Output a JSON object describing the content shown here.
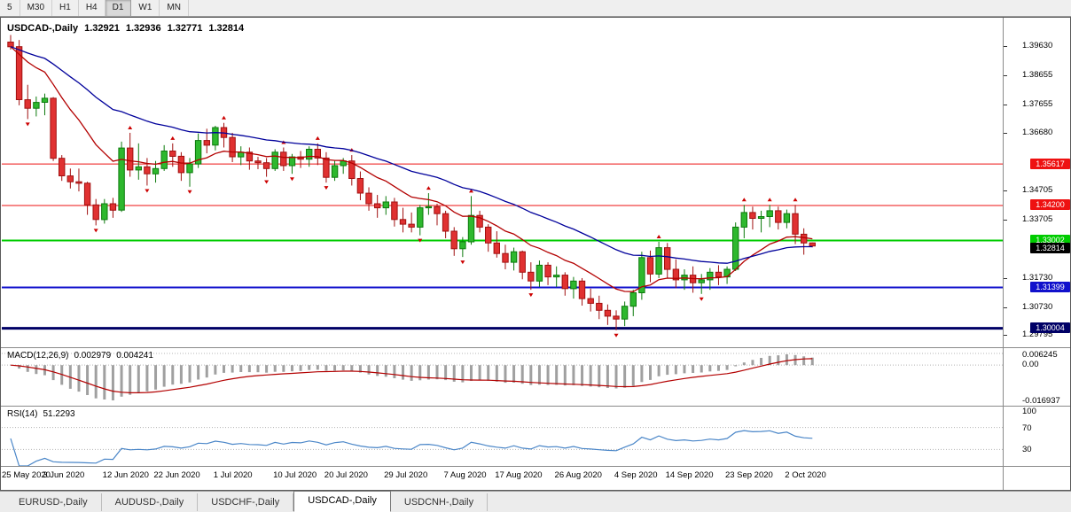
{
  "toolbar": {
    "periods": [
      {
        "label": "5",
        "active": false
      },
      {
        "label": "M30",
        "active": false
      },
      {
        "label": "H1",
        "active": false
      },
      {
        "label": "H4",
        "active": false
      },
      {
        "label": "D1",
        "active": true
      },
      {
        "label": "W1",
        "active": false
      },
      {
        "label": "MN",
        "active": false
      }
    ]
  },
  "chart": {
    "symbol_period": "USDCAD-,Daily",
    "ohlc": [
      "1.32921",
      "1.32936",
      "1.32771",
      "1.32814"
    ]
  },
  "chart_data": {
    "type": "candlestick",
    "symbol": "USDCAD",
    "timeframe": "Daily",
    "title": "USDCAD-,Daily 1.32921 1.32936 1.32771 1.32814",
    "price_range": [
      1.2945,
      1.4055
    ],
    "candle_up_color": "#2eb82e",
    "candle_down_color": "#e03131",
    "y_ticks": [
      {
        "v": 1.3963,
        "t": "1.39630"
      },
      {
        "v": 1.38655,
        "t": "1.38655"
      },
      {
        "v": 1.37655,
        "t": "1.37655"
      },
      {
        "v": 1.3668,
        "t": "1.36680"
      },
      {
        "v": 1.34705,
        "t": "1.34705"
      },
      {
        "v": 1.33705,
        "t": "1.33705"
      },
      {
        "v": 1.3173,
        "t": "1.31730"
      },
      {
        "v": 1.3073,
        "t": "1.30730"
      },
      {
        "v": 1.29795,
        "t": "1.29795"
      }
    ],
    "levels": [
      {
        "value": 1.35617,
        "label": "1.35617",
        "color": "#ee1111",
        "line_width": 1
      },
      {
        "value": 1.342,
        "label": "1.34200",
        "color": "#ee1111",
        "line_width": 1
      },
      {
        "value": 1.33002,
        "label": "1.33002",
        "color": "#00cc00",
        "line_width": 2
      },
      {
        "value": 1.31399,
        "label": "1.31399",
        "color": "#1111cc",
        "line_width": 2
      },
      {
        "value": 1.30004,
        "label": "1.30004",
        "color": "#000066",
        "line_width": 3
      }
    ],
    "last_price": {
      "value": 1.32814,
      "label": "1.32814",
      "color": "#000000"
    },
    "ma": [
      {
        "period": 13,
        "color": "#b30000"
      },
      {
        "period": 34,
        "color": "#00009b"
      }
    ],
    "x_labels": [
      {
        "i": 0,
        "t": "25 May 2020"
      },
      {
        "i": 7,
        "t": "3 Jun 2020"
      },
      {
        "i": 14,
        "t": "12 Jun 2020"
      },
      {
        "i": 20,
        "t": "22 Jun 2020"
      },
      {
        "i": 27,
        "t": "1 Jul 2020"
      },
      {
        "i": 34,
        "t": "10 Jul 2020"
      },
      {
        "i": 40,
        "t": "20 Jul 2020"
      },
      {
        "i": 47,
        "t": "29 Jul 2020"
      },
      {
        "i": 54,
        "t": "7 Aug 2020"
      },
      {
        "i": 60,
        "t": "17 Aug 2020"
      },
      {
        "i": 67,
        "t": "26 Aug 2020"
      },
      {
        "i": 74,
        "t": "4 Sep 2020"
      },
      {
        "i": 80,
        "t": "14 Sep 2020"
      },
      {
        "i": 87,
        "t": "23 Sep 2020"
      },
      {
        "i": 94,
        "t": "2 Oct 2020"
      }
    ],
    "candles": [
      [
        1.3978,
        1.4002,
        1.3952,
        1.3962
      ],
      [
        1.3962,
        1.3985,
        1.3762,
        1.3781
      ],
      [
        1.3781,
        1.3832,
        1.3715,
        1.3752
      ],
      [
        1.3752,
        1.3792,
        1.3724,
        1.3772
      ],
      [
        1.3772,
        1.3802,
        1.3728,
        1.3786
      ],
      [
        1.3786,
        1.379,
        1.3572,
        1.3581
      ],
      [
        1.3581,
        1.3592,
        1.3504,
        1.3521
      ],
      [
        1.3521,
        1.3546,
        1.3478,
        1.3501
      ],
      [
        1.3501,
        1.3546,
        1.3468,
        1.3496
      ],
      [
        1.3496,
        1.3501,
        1.3388,
        1.3422
      ],
      [
        1.3422,
        1.3442,
        1.3352,
        1.3372
      ],
      [
        1.3372,
        1.3442,
        1.3358,
        1.3426
      ],
      [
        1.3426,
        1.3446,
        1.3378,
        1.3404
      ],
      [
        1.3404,
        1.3638,
        1.3398,
        1.3616
      ],
      [
        1.3616,
        1.3668,
        1.3518,
        1.3541
      ],
      [
        1.3541,
        1.3632,
        1.3508,
        1.3552
      ],
      [
        1.3552,
        1.3582,
        1.3488,
        1.3528
      ],
      [
        1.3528,
        1.3572,
        1.3498,
        1.3546
      ],
      [
        1.3546,
        1.3626,
        1.3538,
        1.3606
      ],
      [
        1.3606,
        1.3632,
        1.3552,
        1.3588
      ],
      [
        1.3588,
        1.3602,
        1.3504,
        1.3532
      ],
      [
        1.3532,
        1.3582,
        1.3484,
        1.3562
      ],
      [
        1.3562,
        1.3666,
        1.3548,
        1.3642
      ],
      [
        1.3642,
        1.3682,
        1.3598,
        1.3626
      ],
      [
        1.3626,
        1.3692,
        1.3608,
        1.3686
      ],
      [
        1.3686,
        1.3702,
        1.3618,
        1.3652
      ],
      [
        1.3652,
        1.3668,
        1.3568,
        1.3586
      ],
      [
        1.3586,
        1.3622,
        1.3558,
        1.3602
      ],
      [
        1.3602,
        1.3618,
        1.3542,
        1.3572
      ],
      [
        1.3572,
        1.3586,
        1.3544,
        1.3566
      ],
      [
        1.3566,
        1.3582,
        1.3518,
        1.3546
      ],
      [
        1.3546,
        1.3612,
        1.3538,
        1.3602
      ],
      [
        1.3602,
        1.3618,
        1.3538,
        1.3556
      ],
      [
        1.3556,
        1.3596,
        1.3528,
        1.3586
      ],
      [
        1.3586,
        1.3606,
        1.3548,
        1.3578
      ],
      [
        1.3578,
        1.3622,
        1.3552,
        1.3612
      ],
      [
        1.3612,
        1.3632,
        1.3558,
        1.3582
      ],
      [
        1.3582,
        1.3602,
        1.3498,
        1.3516
      ],
      [
        1.3516,
        1.3572,
        1.3504,
        1.3556
      ],
      [
        1.3556,
        1.3582,
        1.3528,
        1.3572
      ],
      [
        1.3572,
        1.3592,
        1.3488,
        1.3512
      ],
      [
        1.3512,
        1.3536,
        1.3438,
        1.3462
      ],
      [
        1.3462,
        1.3482,
        1.3402,
        1.3426
      ],
      [
        1.3426,
        1.3456,
        1.3378,
        1.3412
      ],
      [
        1.3412,
        1.3452,
        1.3388,
        1.3432
      ],
      [
        1.3432,
        1.3446,
        1.3348,
        1.3372
      ],
      [
        1.3372,
        1.3412,
        1.3328,
        1.3356
      ],
      [
        1.3356,
        1.3396,
        1.3328,
        1.3346
      ],
      [
        1.3346,
        1.3422,
        1.3318,
        1.3412
      ],
      [
        1.3412,
        1.3462,
        1.3388,
        1.3416
      ],
      [
        1.3416,
        1.3426,
        1.3352,
        1.3392
      ],
      [
        1.3392,
        1.3402,
        1.3308,
        1.3332
      ],
      [
        1.3332,
        1.3346,
        1.3248,
        1.3272
      ],
      [
        1.3272,
        1.3312,
        1.3244,
        1.3296
      ],
      [
        1.3296,
        1.3452,
        1.3286,
        1.3386
      ],
      [
        1.3386,
        1.3402,
        1.3328,
        1.3346
      ],
      [
        1.3346,
        1.3356,
        1.3262,
        1.3292
      ],
      [
        1.3292,
        1.3332,
        1.3242,
        1.3256
      ],
      [
        1.3256,
        1.3286,
        1.3202,
        1.3226
      ],
      [
        1.3226,
        1.3276,
        1.3198,
        1.3262
      ],
      [
        1.3262,
        1.3266,
        1.3168,
        1.3192
      ],
      [
        1.3192,
        1.3226,
        1.3132,
        1.3162
      ],
      [
        1.3162,
        1.3232,
        1.3142,
        1.3216
      ],
      [
        1.3216,
        1.3226,
        1.3148,
        1.3176
      ],
      [
        1.3176,
        1.3212,
        1.3142,
        1.3182
      ],
      [
        1.3182,
        1.3192,
        1.3112,
        1.3136
      ],
      [
        1.3136,
        1.3176,
        1.3102,
        1.3162
      ],
      [
        1.3162,
        1.3172,
        1.3078,
        1.3102
      ],
      [
        1.3102,
        1.3136,
        1.3058,
        1.3086
      ],
      [
        1.3086,
        1.3112,
        1.3032,
        1.3062
      ],
      [
        1.3062,
        1.3082,
        1.3012,
        1.3042
      ],
      [
        1.3042,
        1.3062,
        1.2994,
        1.3032
      ],
      [
        1.3032,
        1.3092,
        1.3008,
        1.3076
      ],
      [
        1.3076,
        1.3132,
        1.3042,
        1.3122
      ],
      [
        1.3122,
        1.3262,
        1.3098,
        1.3242
      ],
      [
        1.3242,
        1.3266,
        1.3158,
        1.3186
      ],
      [
        1.3186,
        1.3296,
        1.3172,
        1.3276
      ],
      [
        1.3276,
        1.3292,
        1.3172,
        1.3202
      ],
      [
        1.3202,
        1.3236,
        1.3138,
        1.3166
      ],
      [
        1.3166,
        1.3202,
        1.3132,
        1.3182
      ],
      [
        1.3182,
        1.3212,
        1.3122,
        1.3156
      ],
      [
        1.3156,
        1.3186,
        1.3118,
        1.3166
      ],
      [
        1.3166,
        1.3206,
        1.3132,
        1.3192
      ],
      [
        1.3192,
        1.3216,
        1.3148,
        1.3176
      ],
      [
        1.3176,
        1.3212,
        1.3152,
        1.3202
      ],
      [
        1.3202,
        1.3362,
        1.3196,
        1.3346
      ],
      [
        1.3346,
        1.3422,
        1.3308,
        1.3396
      ],
      [
        1.3396,
        1.3416,
        1.3338,
        1.3376
      ],
      [
        1.3376,
        1.3402,
        1.3328,
        1.3382
      ],
      [
        1.3382,
        1.3422,
        1.3346,
        1.3402
      ],
      [
        1.3402,
        1.3416,
        1.3338,
        1.3362
      ],
      [
        1.3362,
        1.3406,
        1.3342,
        1.3392
      ],
      [
        1.3392,
        1.3422,
        1.3288,
        1.3322
      ],
      [
        1.3322,
        1.3342,
        1.3252,
        1.3292
      ],
      [
        1.32921,
        1.32936,
        1.32771,
        1.32814
      ]
    ],
    "macd": {
      "label": "MACD(12,26,9)",
      "value_main": "0.002979",
      "value_signal": "0.004241",
      "fast": 12,
      "slow": 26,
      "signal": 9,
      "axis_labels": [
        "0.006245",
        "0.00",
        "-0.016937"
      ],
      "histogram_color": "#a0a0a0",
      "signal_color": "#b30000"
    },
    "rsi": {
      "label": "RSI(14)",
      "value": "51.2293",
      "period": 14,
      "axis_labels": [
        {
          "v": 100,
          "t": "100"
        },
        {
          "v": 70,
          "t": "70"
        },
        {
          "v": 30,
          "t": "30"
        }
      ],
      "guide_levels": [
        70,
        30
      ],
      "color": "#4a86c8"
    }
  },
  "tabs": [
    {
      "label": "EURUSD-,Daily",
      "active": false
    },
    {
      "label": "AUDUSD-,Daily",
      "active": false
    },
    {
      "label": "USDCHF-,Daily",
      "active": false
    },
    {
      "label": "USDCAD-,Daily",
      "active": true
    },
    {
      "label": "USDCNH-,Daily",
      "active": false
    }
  ]
}
